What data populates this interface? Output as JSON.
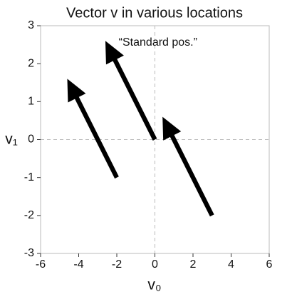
{
  "chart_data": {
    "type": "quiver",
    "title": "Vector v in various locations",
    "xlabel": "v₀",
    "ylabel": "v₁",
    "x": [
      0,
      -2,
      3
    ],
    "y": [
      0,
      -1,
      -2
    ],
    "u": [
      -2.6,
      -2.6,
      -2.6
    ],
    "v": [
      2.6,
      2.6,
      2.6
    ],
    "color": "#000000",
    "xlim": [
      -6,
      6
    ],
    "ylim": [
      -3,
      3
    ],
    "xticks": [
      -6,
      -4,
      -2,
      0,
      2,
      4,
      6
    ],
    "yticks": [
      -3,
      -2,
      -1,
      0,
      1,
      2,
      3
    ],
    "zero_lines": true,
    "annotations": [
      {
        "text": "“Standard pos.”",
        "x": -1.9,
        "y": 2.55
      }
    ]
  }
}
